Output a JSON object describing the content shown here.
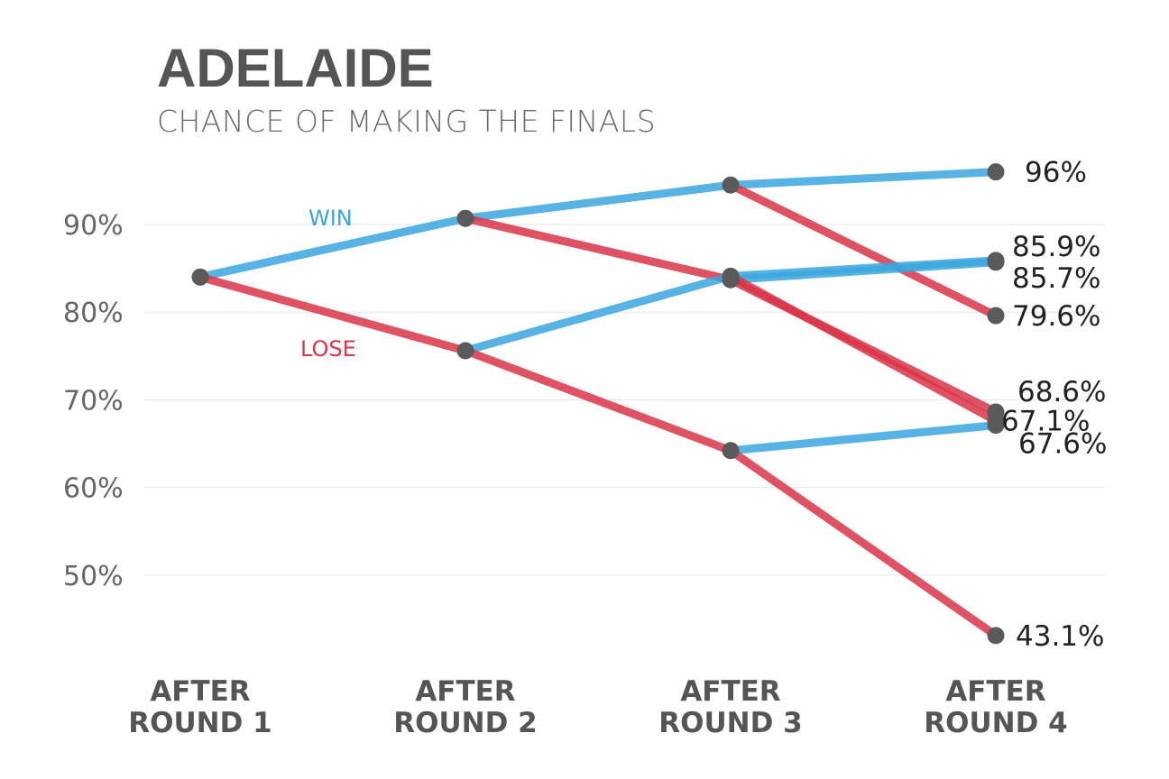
{
  "chart_data": {
    "type": "line",
    "title": "ADELAIDE",
    "subtitle": "CHANCE OF MAKING THE FINALS",
    "xlabel": "",
    "ylabel": "",
    "ylim": [
      40,
      97
    ],
    "yticks": [
      50,
      60,
      70,
      80,
      90
    ],
    "ytick_labels": [
      "50%",
      "60%",
      "70%",
      "80%",
      "90%"
    ],
    "categories": [
      [
        "AFTER",
        "ROUND 1"
      ],
      [
        "AFTER",
        "ROUND 2"
      ],
      [
        "AFTER",
        "ROUND 3"
      ],
      [
        "AFTER",
        "ROUND 4"
      ]
    ],
    "legend": [
      {
        "name": "WIN",
        "color": "#3aa6de"
      },
      {
        "name": "LOSE",
        "color": "#d93448"
      }
    ],
    "point_color": "#5a5a5a",
    "segments": [
      {
        "result": "win",
        "from": [
          0,
          84.0
        ],
        "to": [
          1,
          90.7
        ]
      },
      {
        "result": "lose",
        "from": [
          0,
          84.0
        ],
        "to": [
          1,
          75.6
        ]
      },
      {
        "result": "win",
        "from": [
          1,
          90.7
        ],
        "to": [
          2,
          94.5
        ]
      },
      {
        "result": "lose",
        "from": [
          1,
          90.7
        ],
        "to": [
          2,
          83.7
        ]
      },
      {
        "result": "win",
        "from": [
          1,
          75.6
        ],
        "to": [
          2,
          84.1
        ]
      },
      {
        "result": "lose",
        "from": [
          1,
          75.6
        ],
        "to": [
          2,
          64.2
        ]
      },
      {
        "result": "win",
        "from": [
          2,
          94.5
        ],
        "to": [
          3,
          96.0
        ]
      },
      {
        "result": "lose",
        "from": [
          2,
          94.5
        ],
        "to": [
          3,
          79.6
        ]
      },
      {
        "result": "win",
        "from": [
          2,
          83.7
        ],
        "to": [
          3,
          85.7
        ]
      },
      {
        "result": "lose",
        "from": [
          2,
          83.7
        ],
        "to": [
          3,
          68.6
        ]
      },
      {
        "result": "win",
        "from": [
          2,
          84.1
        ],
        "to": [
          3,
          85.9
        ]
      },
      {
        "result": "lose",
        "from": [
          2,
          84.1
        ],
        "to": [
          3,
          67.6
        ]
      },
      {
        "result": "win",
        "from": [
          2,
          64.2
        ],
        "to": [
          3,
          67.1
        ]
      },
      {
        "result": "lose",
        "from": [
          2,
          64.2
        ],
        "to": [
          3,
          43.1
        ]
      }
    ],
    "points": [
      {
        "x": 0,
        "y": 84.0
      },
      {
        "x": 1,
        "y": 90.7
      },
      {
        "x": 1,
        "y": 75.6
      },
      {
        "x": 2,
        "y": 94.5
      },
      {
        "x": 2,
        "y": 83.7
      },
      {
        "x": 2,
        "y": 84.1
      },
      {
        "x": 2,
        "y": 64.2
      },
      {
        "x": 3,
        "y": 96.0
      },
      {
        "x": 3,
        "y": 85.9
      },
      {
        "x": 3,
        "y": 85.7
      },
      {
        "x": 3,
        "y": 79.6
      },
      {
        "x": 3,
        "y": 68.6
      },
      {
        "x": 3,
        "y": 67.1
      },
      {
        "x": 3,
        "y": 67.6
      },
      {
        "x": 3,
        "y": 43.1
      }
    ],
    "end_labels": [
      {
        "text": "96%",
        "y": 96.0,
        "anchor": "right"
      },
      {
        "text": "85.9%",
        "y": 85.9,
        "anchor": "upper-right"
      },
      {
        "text": "85.7%",
        "y": 85.7,
        "anchor": "lower-right"
      },
      {
        "text": "79.6%",
        "y": 79.6,
        "anchor": "right"
      },
      {
        "text": "68.6%",
        "y": 68.6,
        "anchor": "upper-right"
      },
      {
        "text": "67.1%",
        "y": 67.1,
        "anchor": "right"
      },
      {
        "text": "67.6%",
        "y": 67.6,
        "anchor": "lower-right"
      },
      {
        "text": "43.1%",
        "y": 43.1,
        "anchor": "right"
      }
    ],
    "grid": true
  }
}
